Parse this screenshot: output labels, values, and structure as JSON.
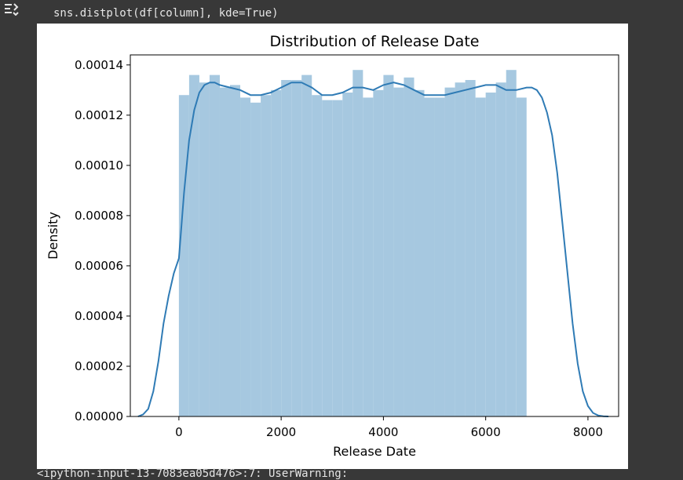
{
  "cell": {
    "code": "sns.distplot(df[column], kde=True)",
    "warning": "<ipython-input-13-7083ea05d476>:7: UserWarning:",
    "output_icon": "output-toggle-icon"
  },
  "chart_data": {
    "type": "bar",
    "title": "Distribution of Release Date",
    "xlabel": "Release Date",
    "ylabel": "Density",
    "xlim": [
      -950,
      8600
    ],
    "ylim": [
      0,
      0.000144
    ],
    "x_ticks": [
      0,
      2000,
      4000,
      6000,
      8000
    ],
    "x_tick_labels": [
      "0",
      "2000",
      "4000",
      "6000",
      "8000"
    ],
    "y_ticks": [
      0,
      2e-05,
      4e-05,
      6e-05,
      8e-05,
      0.0001,
      0.00012,
      0.00014
    ],
    "y_tick_labels": [
      "0.00000",
      "0.00002",
      "0.00004",
      "0.00006",
      "0.00008",
      "0.00010",
      "0.00012",
      "0.00014"
    ],
    "grid": false,
    "hist": {
      "color": "#a6c8e0",
      "bin_start": 0,
      "bin_width": 200,
      "values": [
        0.000128,
        0.000136,
        0.000133,
        0.000136,
        0.000131,
        0.000132,
        0.000127,
        0.000125,
        0.000128,
        0.00013,
        0.000134,
        0.000134,
        0.000136,
        0.000128,
        0.000126,
        0.000126,
        0.000129,
        0.000138,
        0.000127,
        0.00013,
        0.000136,
        0.000131,
        0.000135,
        0.00013,
        0.000127,
        0.000127,
        0.000131,
        0.000133,
        0.000134,
        0.000127,
        0.000129,
        0.000133,
        0.000138,
        0.000127
      ]
    },
    "kde": {
      "color": "#2f7bb5",
      "x": [
        -800,
        -700,
        -600,
        -500,
        -400,
        -300,
        -200,
        -100,
        0,
        100,
        200,
        300,
        400,
        500,
        600,
        700,
        800,
        1000,
        1200,
        1400,
        1600,
        1800,
        2000,
        2200,
        2400,
        2600,
        2800,
        3000,
        3200,
        3400,
        3600,
        3800,
        4000,
        4200,
        4400,
        4600,
        4800,
        5000,
        5200,
        5400,
        5600,
        5800,
        6000,
        6200,
        6400,
        6600,
        6800,
        6900,
        7000,
        7100,
        7200,
        7300,
        7400,
        7500,
        7600,
        7700,
        7800,
        7900,
        8000,
        8100,
        8200,
        8300,
        8400
      ],
      "y": [
        0,
        8e-07,
        3e-06,
        1e-05,
        2.2e-05,
        3.7e-05,
        4.8e-05,
        5.7e-05,
        6.3e-05,
        8.9e-05,
        0.00011,
        0.000122,
        0.000129,
        0.000132,
        0.000133,
        0.000133,
        0.000132,
        0.000131,
        0.00013,
        0.000128,
        0.000128,
        0.000129,
        0.000131,
        0.000133,
        0.000133,
        0.000131,
        0.000128,
        0.000128,
        0.000129,
        0.000131,
        0.000131,
        0.00013,
        0.000132,
        0.000133,
        0.000132,
        0.00013,
        0.000128,
        0.000128,
        0.000128,
        0.000129,
        0.00013,
        0.000131,
        0.000132,
        0.000132,
        0.00013,
        0.00013,
        0.000131,
        0.000131,
        0.00013,
        0.000127,
        0.000121,
        0.000112,
        9.7e-05,
        7.7e-05,
        5.7e-05,
        3.7e-05,
        2.1e-05,
        1e-05,
        4.2e-06,
        1.4e-06,
        4e-07,
        1e-07,
        0
      ]
    }
  }
}
